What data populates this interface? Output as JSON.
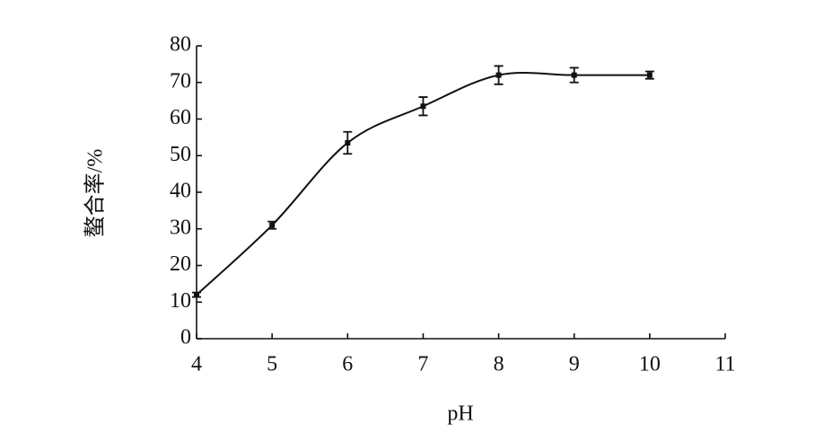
{
  "chart_data": {
    "type": "line",
    "xlabel": "pH",
    "ylabel": "螯合率/%",
    "x": [
      4,
      5,
      6,
      7,
      8,
      9,
      10
    ],
    "series": [
      {
        "color": "#111111",
        "values": [
          12,
          31,
          53.5,
          63.5,
          72,
          72,
          72
        ],
        "errors": [
          0.6,
          1,
          3,
          2.5,
          2.5,
          2,
          1
        ]
      }
    ],
    "xlim": [
      4,
      11
    ],
    "xticks": [
      4,
      5,
      6,
      7,
      8,
      9,
      10,
      11
    ],
    "ylim": [
      0,
      80
    ],
    "yticks": [
      0,
      10,
      20,
      30,
      40,
      50,
      60,
      70,
      80
    ],
    "grid": false
  }
}
